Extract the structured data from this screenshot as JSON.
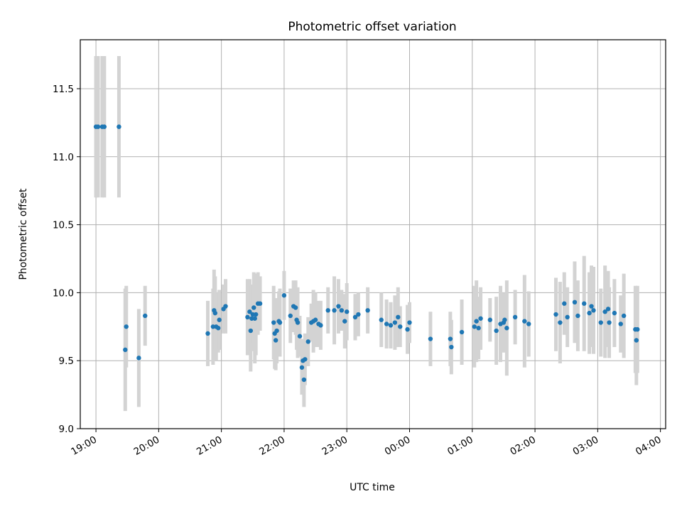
{
  "chart_data": {
    "type": "scatter",
    "title": "Photometric offset variation",
    "xlabel": "UTC time",
    "ylabel": "Photometric offset",
    "x_axis": "time",
    "x_range": [
      "18:45",
      "04:05"
    ],
    "x_ticks": [
      "19:00",
      "20:00",
      "21:00",
      "22:00",
      "23:00",
      "00:00",
      "01:00",
      "02:00",
      "03:00",
      "04:00"
    ],
    "ylim": [
      9.0,
      11.86
    ],
    "y_ticks": [
      9.0,
      9.5,
      10.0,
      10.5,
      11.0,
      11.5
    ],
    "grid": true,
    "colors": {
      "point": "#1f77b4",
      "errorbar": "#d3d3d3",
      "grid": "#b0b0b0"
    },
    "points": [
      {
        "t": "19:00",
        "y": 11.22,
        "err": 0.52
      },
      {
        "t": "19:02",
        "y": 11.22,
        "err": 0.52
      },
      {
        "t": "19:06",
        "y": 11.22,
        "err": 0.52
      },
      {
        "t": "19:08",
        "y": 11.22,
        "err": 0.52
      },
      {
        "t": "19:22",
        "y": 11.22,
        "err": 0.52
      },
      {
        "t": "19:28",
        "y": 9.58,
        "err": 0.45
      },
      {
        "t": "19:29",
        "y": 9.75,
        "err": 0.3
      },
      {
        "t": "19:41",
        "y": 9.52,
        "err": 0.36
      },
      {
        "t": "19:47",
        "y": 9.83,
        "err": 0.22
      },
      {
        "t": "20:47",
        "y": 9.7,
        "err": 0.24
      },
      {
        "t": "20:52",
        "y": 9.75,
        "err": 0.28
      },
      {
        "t": "20:53",
        "y": 9.87,
        "err": 0.3
      },
      {
        "t": "20:54",
        "y": 9.85,
        "err": 0.27
      },
      {
        "t": "20:55",
        "y": 9.75,
        "err": 0.25
      },
      {
        "t": "20:57",
        "y": 9.74,
        "err": 0.18
      },
      {
        "t": "20:58",
        "y": 9.8,
        "err": 0.22
      },
      {
        "t": "21:02",
        "y": 9.88,
        "err": 0.18
      },
      {
        "t": "21:04",
        "y": 9.9,
        "err": 0.2
      },
      {
        "t": "21:25",
        "y": 9.82,
        "err": 0.28
      },
      {
        "t": "21:27",
        "y": 9.86,
        "err": 0.24
      },
      {
        "t": "21:28",
        "y": 9.72,
        "err": 0.3
      },
      {
        "t": "21:29",
        "y": 9.81,
        "err": 0.24
      },
      {
        "t": "21:30",
        "y": 9.84,
        "err": 0.22
      },
      {
        "t": "21:31",
        "y": 9.89,
        "err": 0.26
      },
      {
        "t": "21:32",
        "y": 9.81,
        "err": 0.33
      },
      {
        "t": "21:33",
        "y": 9.84,
        "err": 0.3
      },
      {
        "t": "21:35",
        "y": 9.92,
        "err": 0.23
      },
      {
        "t": "21:37",
        "y": 9.92,
        "err": 0.2
      },
      {
        "t": "21:50",
        "y": 9.78,
        "err": 0.27
      },
      {
        "t": "21:51",
        "y": 9.7,
        "err": 0.26
      },
      {
        "t": "21:52",
        "y": 9.65,
        "err": 0.22
      },
      {
        "t": "21:53",
        "y": 9.72,
        "err": 0.24
      },
      {
        "t": "21:55",
        "y": 9.79,
        "err": 0.22
      },
      {
        "t": "21:56",
        "y": 9.78,
        "err": 0.25
      },
      {
        "t": "22:00",
        "y": 9.98,
        "err": 0.18
      },
      {
        "t": "22:06",
        "y": 9.83,
        "err": 0.2
      },
      {
        "t": "22:09",
        "y": 9.9,
        "err": 0.19
      },
      {
        "t": "22:11",
        "y": 9.89,
        "err": 0.2
      },
      {
        "t": "22:12",
        "y": 9.8,
        "err": 0.22
      },
      {
        "t": "22:13",
        "y": 9.78,
        "err": 0.26
      },
      {
        "t": "22:15",
        "y": 9.68,
        "err": 0.15
      },
      {
        "t": "22:17",
        "y": 9.45,
        "err": 0.2
      },
      {
        "t": "22:18",
        "y": 9.5,
        "err": 0.16
      },
      {
        "t": "22:19",
        "y": 9.36,
        "err": 0.2
      },
      {
        "t": "22:20",
        "y": 9.51,
        "err": 0.19
      },
      {
        "t": "22:23",
        "y": 9.64,
        "err": 0.18
      },
      {
        "t": "22:26",
        "y": 9.78,
        "err": 0.14
      },
      {
        "t": "22:28",
        "y": 9.79,
        "err": 0.23
      },
      {
        "t": "22:30",
        "y": 9.8,
        "err": 0.2
      },
      {
        "t": "22:33",
        "y": 9.77,
        "err": 0.17
      },
      {
        "t": "22:35",
        "y": 9.76,
        "err": 0.18
      },
      {
        "t": "22:42",
        "y": 9.87,
        "err": 0.17
      },
      {
        "t": "22:48",
        "y": 9.87,
        "err": 0.25
      },
      {
        "t": "22:52",
        "y": 9.9,
        "err": 0.2
      },
      {
        "t": "22:55",
        "y": 9.87,
        "err": 0.15
      },
      {
        "t": "22:58",
        "y": 9.79,
        "err": 0.2
      },
      {
        "t": "23:00",
        "y": 9.86,
        "err": 0.21
      },
      {
        "t": "23:08",
        "y": 9.82,
        "err": 0.17
      },
      {
        "t": "23:11",
        "y": 9.84,
        "err": 0.16
      },
      {
        "t": "23:20",
        "y": 9.87,
        "err": 0.17
      },
      {
        "t": "23:33",
        "y": 9.8,
        "err": 0.2
      },
      {
        "t": "23:38",
        "y": 9.77,
        "err": 0.18
      },
      {
        "t": "23:42",
        "y": 9.76,
        "err": 0.17
      },
      {
        "t": "23:46",
        "y": 9.78,
        "err": 0.2
      },
      {
        "t": "23:49",
        "y": 9.82,
        "err": 0.22
      },
      {
        "t": "23:51",
        "y": 9.75,
        "err": 0.15
      },
      {
        "t": "23:58",
        "y": 9.73,
        "err": 0.18
      },
      {
        "t": "00:00",
        "y": 9.78,
        "err": 0.15
      },
      {
        "t": "00:20",
        "y": 9.66,
        "err": 0.2
      },
      {
        "t": "00:39",
        "y": 9.66,
        "err": 0.2
      },
      {
        "t": "00:40",
        "y": 9.6,
        "err": 0.2
      },
      {
        "t": "00:50",
        "y": 9.71,
        "err": 0.24
      },
      {
        "t": "01:02",
        "y": 9.75,
        "err": 0.3
      },
      {
        "t": "01:04",
        "y": 9.79,
        "err": 0.3
      },
      {
        "t": "01:06",
        "y": 9.74,
        "err": 0.23
      },
      {
        "t": "01:08",
        "y": 9.81,
        "err": 0.23
      },
      {
        "t": "01:17",
        "y": 9.8,
        "err": 0.16
      },
      {
        "t": "01:23",
        "y": 9.72,
        "err": 0.25
      },
      {
        "t": "01:27",
        "y": 9.77,
        "err": 0.28
      },
      {
        "t": "01:30",
        "y": 9.78,
        "err": 0.22
      },
      {
        "t": "01:31",
        "y": 9.8,
        "err": 0.2
      },
      {
        "t": "01:33",
        "y": 9.74,
        "err": 0.35
      },
      {
        "t": "01:41",
        "y": 9.82,
        "err": 0.2
      },
      {
        "t": "01:50",
        "y": 9.79,
        "err": 0.34
      },
      {
        "t": "01:54",
        "y": 9.77,
        "err": 0.24
      },
      {
        "t": "02:20",
        "y": 9.84,
        "err": 0.27
      },
      {
        "t": "02:24",
        "y": 9.78,
        "err": 0.3
      },
      {
        "t": "02:28",
        "y": 9.92,
        "err": 0.23
      },
      {
        "t": "02:31",
        "y": 9.82,
        "err": 0.22
      },
      {
        "t": "02:38",
        "y": 9.93,
        "err": 0.3
      },
      {
        "t": "02:41",
        "y": 9.83,
        "err": 0.26
      },
      {
        "t": "02:47",
        "y": 9.92,
        "err": 0.35
      },
      {
        "t": "02:52",
        "y": 9.85,
        "err": 0.3
      },
      {
        "t": "02:54",
        "y": 9.9,
        "err": 0.3
      },
      {
        "t": "02:56",
        "y": 9.87,
        "err": 0.32
      },
      {
        "t": "03:03",
        "y": 9.78,
        "err": 0.25
      },
      {
        "t": "03:07",
        "y": 9.86,
        "err": 0.34
      },
      {
        "t": "03:10",
        "y": 9.88,
        "err": 0.28
      },
      {
        "t": "03:11",
        "y": 9.78,
        "err": 0.26
      },
      {
        "t": "03:16",
        "y": 9.85,
        "err": 0.25
      },
      {
        "t": "03:22",
        "y": 9.77,
        "err": 0.21
      },
      {
        "t": "03:25",
        "y": 9.83,
        "err": 0.31
      },
      {
        "t": "03:36",
        "y": 9.73,
        "err": 0.32
      },
      {
        "t": "03:37",
        "y": 9.65,
        "err": 0.33
      },
      {
        "t": "03:38",
        "y": 9.73,
        "err": 0.32
      }
    ]
  }
}
